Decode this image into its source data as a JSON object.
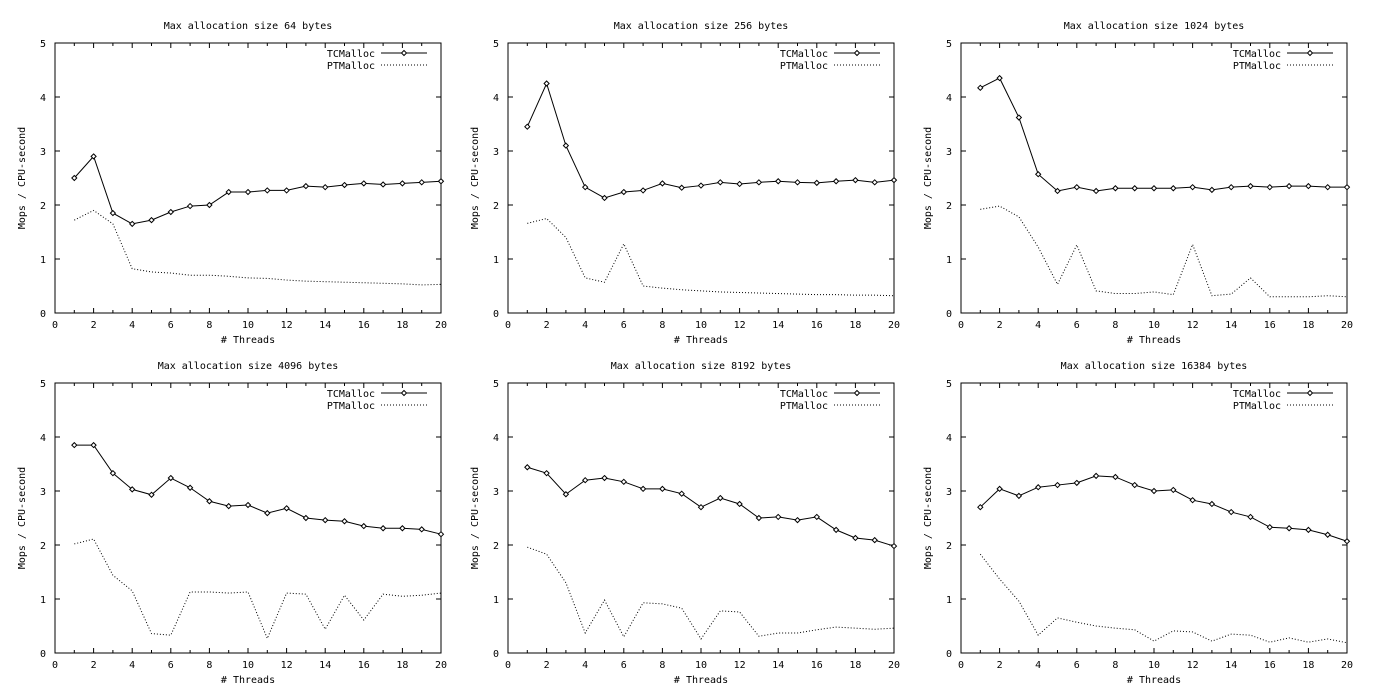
{
  "chart_data": [
    {
      "type": "line",
      "title": "Max allocation size 64 bytes",
      "xlabel": "# Threads",
      "ylabel": "Mops / CPU-second",
      "xlim": [
        0,
        20
      ],
      "ylim": [
        0,
        5
      ],
      "xticks": [
        "0",
        "2",
        "4",
        "6",
        "8",
        "10",
        "12",
        "14",
        "16",
        "18",
        "20"
      ],
      "yticks": [
        "0",
        "1",
        "2",
        "3",
        "4",
        "5"
      ],
      "legend_position": "top-right",
      "x": [
        1,
        2,
        3,
        4,
        5,
        6,
        7,
        8,
        9,
        10,
        11,
        12,
        13,
        14,
        15,
        16,
        17,
        18,
        19,
        20
      ],
      "series": [
        {
          "name": "TCMalloc",
          "style": "solid-markers",
          "values": [
            2.5,
            2.9,
            1.85,
            1.65,
            1.72,
            1.87,
            1.98,
            2.0,
            2.24,
            2.24,
            2.27,
            2.27,
            2.35,
            2.33,
            2.37,
            2.4,
            2.38,
            2.4,
            2.42,
            2.44
          ]
        },
        {
          "name": "PTMalloc",
          "style": "dotted",
          "values": [
            1.72,
            1.9,
            1.65,
            0.82,
            0.76,
            0.74,
            0.7,
            0.7,
            0.68,
            0.65,
            0.64,
            0.61,
            0.59,
            0.58,
            0.57,
            0.56,
            0.55,
            0.54,
            0.52,
            0.53
          ]
        }
      ]
    },
    {
      "type": "line",
      "title": "Max allocation size 256 bytes",
      "xlabel": "# Threads",
      "ylabel": "Mops / CPU-second",
      "xlim": [
        0,
        20
      ],
      "ylim": [
        0,
        5
      ],
      "xticks": [
        "0",
        "2",
        "4",
        "6",
        "8",
        "10",
        "12",
        "14",
        "16",
        "18",
        "20"
      ],
      "yticks": [
        "0",
        "1",
        "2",
        "3",
        "4",
        "5"
      ],
      "legend_position": "top-right",
      "x": [
        1,
        2,
        3,
        4,
        5,
        6,
        7,
        8,
        9,
        10,
        11,
        12,
        13,
        14,
        15,
        16,
        17,
        18,
        19,
        20
      ],
      "series": [
        {
          "name": "TCMalloc",
          "style": "solid-markers",
          "values": [
            3.45,
            4.25,
            3.1,
            2.33,
            2.13,
            2.24,
            2.27,
            2.4,
            2.32,
            2.36,
            2.42,
            2.39,
            2.42,
            2.44,
            2.42,
            2.41,
            2.44,
            2.46,
            2.42,
            2.46
          ]
        },
        {
          "name": "PTMalloc",
          "style": "dotted",
          "values": [
            1.66,
            1.75,
            1.4,
            0.65,
            0.57,
            1.28,
            0.5,
            0.46,
            0.43,
            0.41,
            0.39,
            0.38,
            0.37,
            0.36,
            0.35,
            0.34,
            0.34,
            0.33,
            0.33,
            0.32
          ]
        }
      ]
    },
    {
      "type": "line",
      "title": "Max allocation size 1024 bytes",
      "xlabel": "# Threads",
      "ylabel": "Mops / CPU-second",
      "xlim": [
        0,
        20
      ],
      "ylim": [
        0,
        5
      ],
      "xticks": [
        "0",
        "2",
        "4",
        "6",
        "8",
        "10",
        "12",
        "14",
        "16",
        "18",
        "20"
      ],
      "yticks": [
        "0",
        "1",
        "2",
        "3",
        "4",
        "5"
      ],
      "legend_position": "top-right",
      "x": [
        1,
        2,
        3,
        4,
        5,
        6,
        7,
        8,
        9,
        10,
        11,
        12,
        13,
        14,
        15,
        16,
        17,
        18,
        19,
        20
      ],
      "series": [
        {
          "name": "TCMalloc",
          "style": "solid-markers",
          "values": [
            4.17,
            4.35,
            3.62,
            2.57,
            2.26,
            2.33,
            2.26,
            2.31,
            2.31,
            2.31,
            2.31,
            2.33,
            2.28,
            2.33,
            2.35,
            2.33,
            2.35,
            2.35,
            2.33,
            2.33
          ]
        },
        {
          "name": "PTMalloc",
          "style": "dotted",
          "values": [
            1.92,
            1.98,
            1.78,
            1.22,
            0.53,
            1.26,
            0.41,
            0.36,
            0.36,
            0.39,
            0.34,
            1.27,
            0.32,
            0.35,
            0.65,
            0.3,
            0.3,
            0.3,
            0.32,
            0.3
          ]
        }
      ]
    },
    {
      "type": "line",
      "title": "Max allocation size 4096 bytes",
      "xlabel": "# Threads",
      "ylabel": "Mops / CPU-second",
      "xlim": [
        0,
        20
      ],
      "ylim": [
        0,
        5
      ],
      "xticks": [
        "0",
        "2",
        "4",
        "6",
        "8",
        "10",
        "12",
        "14",
        "16",
        "18",
        "20"
      ],
      "yticks": [
        "0",
        "1",
        "2",
        "3",
        "4",
        "5"
      ],
      "legend_position": "top-right",
      "x": [
        1,
        2,
        3,
        4,
        5,
        6,
        7,
        8,
        9,
        10,
        11,
        12,
        13,
        14,
        15,
        16,
        17,
        18,
        19,
        20
      ],
      "series": [
        {
          "name": "TCMalloc",
          "style": "solid-markers",
          "values": [
            3.85,
            3.85,
            3.33,
            3.03,
            2.93,
            3.24,
            3.06,
            2.81,
            2.72,
            2.74,
            2.59,
            2.68,
            2.5,
            2.46,
            2.44,
            2.35,
            2.31,
            2.31,
            2.29,
            2.2
          ]
        },
        {
          "name": "PTMalloc",
          "style": "dotted",
          "values": [
            2.02,
            2.11,
            1.44,
            1.15,
            0.36,
            0.33,
            1.13,
            1.13,
            1.11,
            1.13,
            0.27,
            1.11,
            1.09,
            0.44,
            1.07,
            0.61,
            1.09,
            1.05,
            1.07,
            1.11
          ]
        }
      ]
    },
    {
      "type": "line",
      "title": "Max allocation size 8192 bytes",
      "xlabel": "# Threads",
      "ylabel": "Mops / CPU-second",
      "xlim": [
        0,
        20
      ],
      "ylim": [
        0,
        5
      ],
      "xticks": [
        "0",
        "2",
        "4",
        "6",
        "8",
        "10",
        "12",
        "14",
        "16",
        "18",
        "20"
      ],
      "yticks": [
        "0",
        "1",
        "2",
        "3",
        "4",
        "5"
      ],
      "legend_position": "top-right",
      "x": [
        1,
        2,
        3,
        4,
        5,
        6,
        7,
        8,
        9,
        10,
        11,
        12,
        13,
        14,
        15,
        16,
        17,
        18,
        19,
        20
      ],
      "series": [
        {
          "name": "TCMalloc",
          "style": "solid-markers",
          "values": [
            3.44,
            3.33,
            2.94,
            3.2,
            3.24,
            3.17,
            3.04,
            3.04,
            2.95,
            2.7,
            2.87,
            2.76,
            2.5,
            2.52,
            2.46,
            2.52,
            2.28,
            2.13,
            2.09,
            1.98
          ]
        },
        {
          "name": "PTMalloc",
          "style": "dotted",
          "values": [
            1.96,
            1.83,
            1.3,
            0.37,
            0.98,
            0.3,
            0.93,
            0.91,
            0.83,
            0.26,
            0.78,
            0.76,
            0.31,
            0.37,
            0.37,
            0.43,
            0.48,
            0.46,
            0.44,
            0.46
          ]
        }
      ]
    },
    {
      "type": "line",
      "title": "Max allocation size 16384 bytes",
      "xlabel": "# Threads",
      "ylabel": "Mops / CPU-second",
      "xlim": [
        0,
        20
      ],
      "ylim": [
        0,
        5
      ],
      "xticks": [
        "0",
        "2",
        "4",
        "6",
        "8",
        "10",
        "12",
        "14",
        "16",
        "18",
        "20"
      ],
      "yticks": [
        "0",
        "1",
        "2",
        "3",
        "4",
        "5"
      ],
      "legend_position": "top-right",
      "x": [
        1,
        2,
        3,
        4,
        5,
        6,
        7,
        8,
        9,
        10,
        11,
        12,
        13,
        14,
        15,
        16,
        17,
        18,
        19,
        20
      ],
      "series": [
        {
          "name": "TCMalloc",
          "style": "solid-markers",
          "values": [
            2.7,
            3.04,
            2.91,
            3.07,
            3.11,
            3.15,
            3.28,
            3.26,
            3.11,
            3.0,
            3.02,
            2.83,
            2.76,
            2.61,
            2.52,
            2.33,
            2.31,
            2.28,
            2.19,
            2.07
          ]
        },
        {
          "name": "PTMalloc",
          "style": "dotted",
          "values": [
            1.83,
            1.37,
            0.96,
            0.33,
            0.65,
            0.57,
            0.5,
            0.46,
            0.43,
            0.22,
            0.41,
            0.39,
            0.22,
            0.35,
            0.33,
            0.2,
            0.28,
            0.2,
            0.26,
            0.19
          ]
        }
      ]
    }
  ]
}
